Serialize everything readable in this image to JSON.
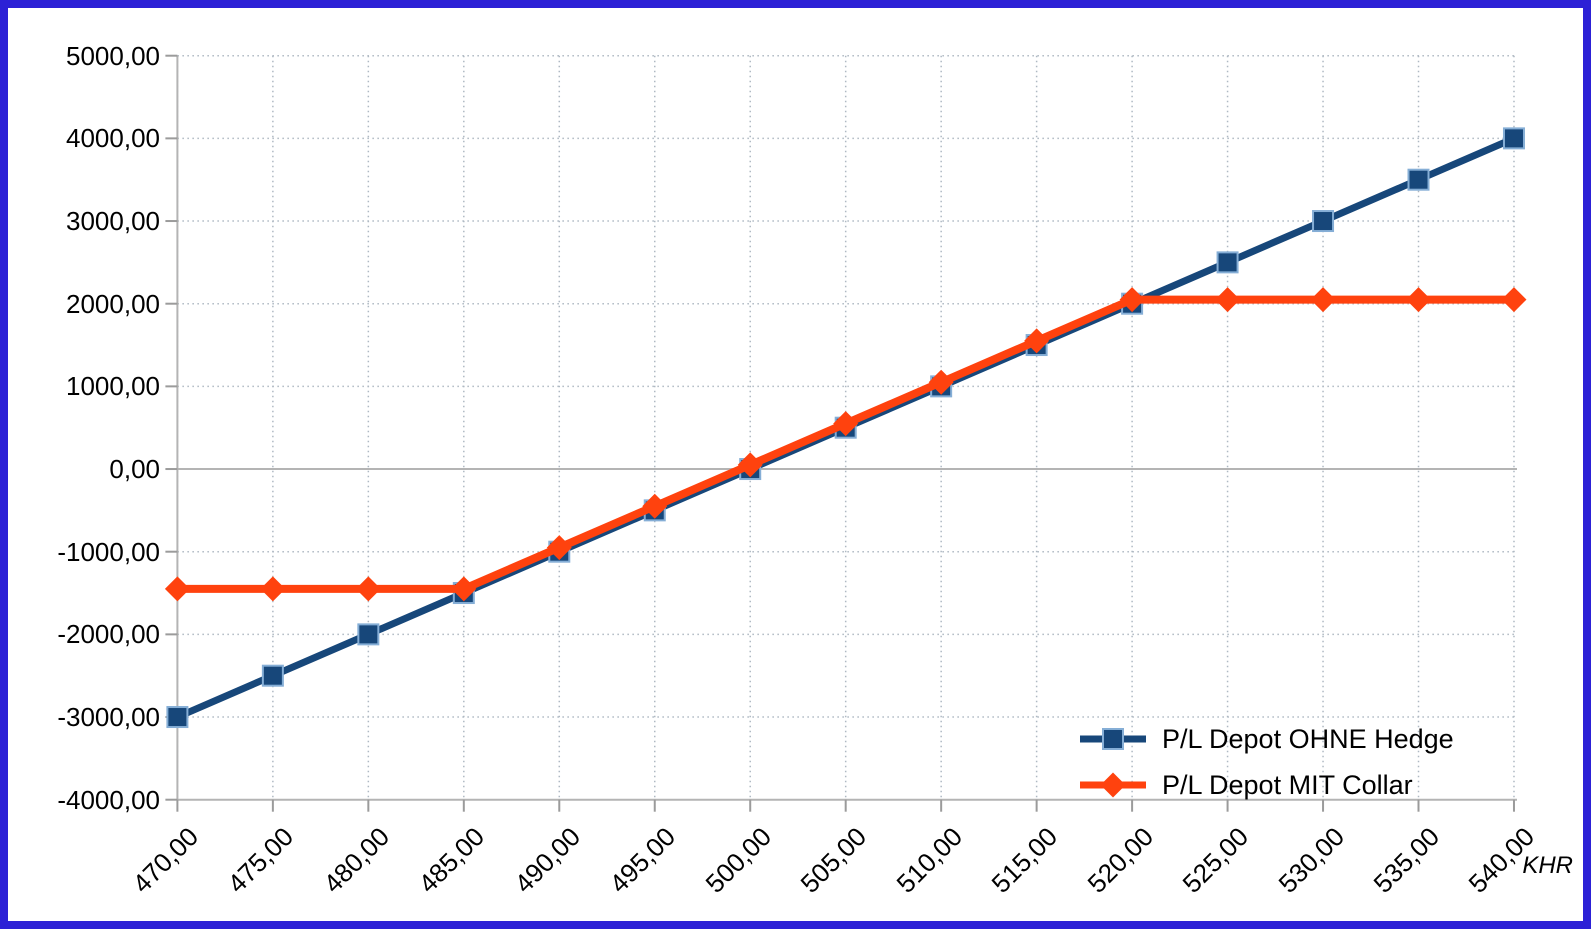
{
  "frame": {
    "border_color": "#2c21d6",
    "border_inner_shadow_color": "#0b0769"
  },
  "chart_data": {
    "type": "line",
    "title": "",
    "x_unit_label": "KHR",
    "categories": [
      470,
      475,
      480,
      485,
      490,
      495,
      500,
      505,
      510,
      515,
      520,
      525,
      530,
      535,
      540
    ],
    "category_labels": [
      "470,00",
      "475,00",
      "480,00",
      "485,00",
      "490,00",
      "495,00",
      "500,00",
      "505,00",
      "510,00",
      "515,00",
      "520,00",
      "525,00",
      "530,00",
      "535,00",
      "540,00"
    ],
    "y_ticks": {
      "values": [
        5000,
        4000,
        3000,
        2000,
        1000,
        0,
        -1000,
        -2000,
        -3000,
        -4000
      ],
      "labels": [
        "5000,00",
        "4000,00",
        "3000,00",
        "2000,00",
        "1000,00",
        "0,00",
        "-1000,00",
        "-2000,00",
        "-3000,00",
        "-4000,00"
      ]
    },
    "ylim": [
      -4000,
      5000
    ],
    "grid": true,
    "zero_line": true,
    "legend_position": "bottom-right-inside",
    "colors": {
      "grid": "#aeb8c2",
      "axis": "#b4b4b4",
      "tick": "#9b9b9b",
      "text": "#000000"
    },
    "series": [
      {
        "name": "P/L Depot OHNE Hedge",
        "color": "#17477a",
        "marker": "square",
        "marker_stroke": "#85aed6",
        "line_width": 7,
        "values": [
          -3000,
          -2500,
          -2000,
          -1500,
          -1000,
          -500,
          0,
          500,
          1000,
          1500,
          2000,
          2500,
          3000,
          3500,
          4000
        ]
      },
      {
        "name": "P/L Depot MIT Collar",
        "color": "#ff420e",
        "marker": "diamond",
        "marker_stroke": "#ff420e",
        "line_width": 8,
        "values": [
          -1450,
          -1450,
          -1450,
          -1450,
          -950,
          -450,
          50,
          550,
          1050,
          1550,
          2050,
          2050,
          2050,
          2050,
          2050
        ]
      }
    ]
  }
}
